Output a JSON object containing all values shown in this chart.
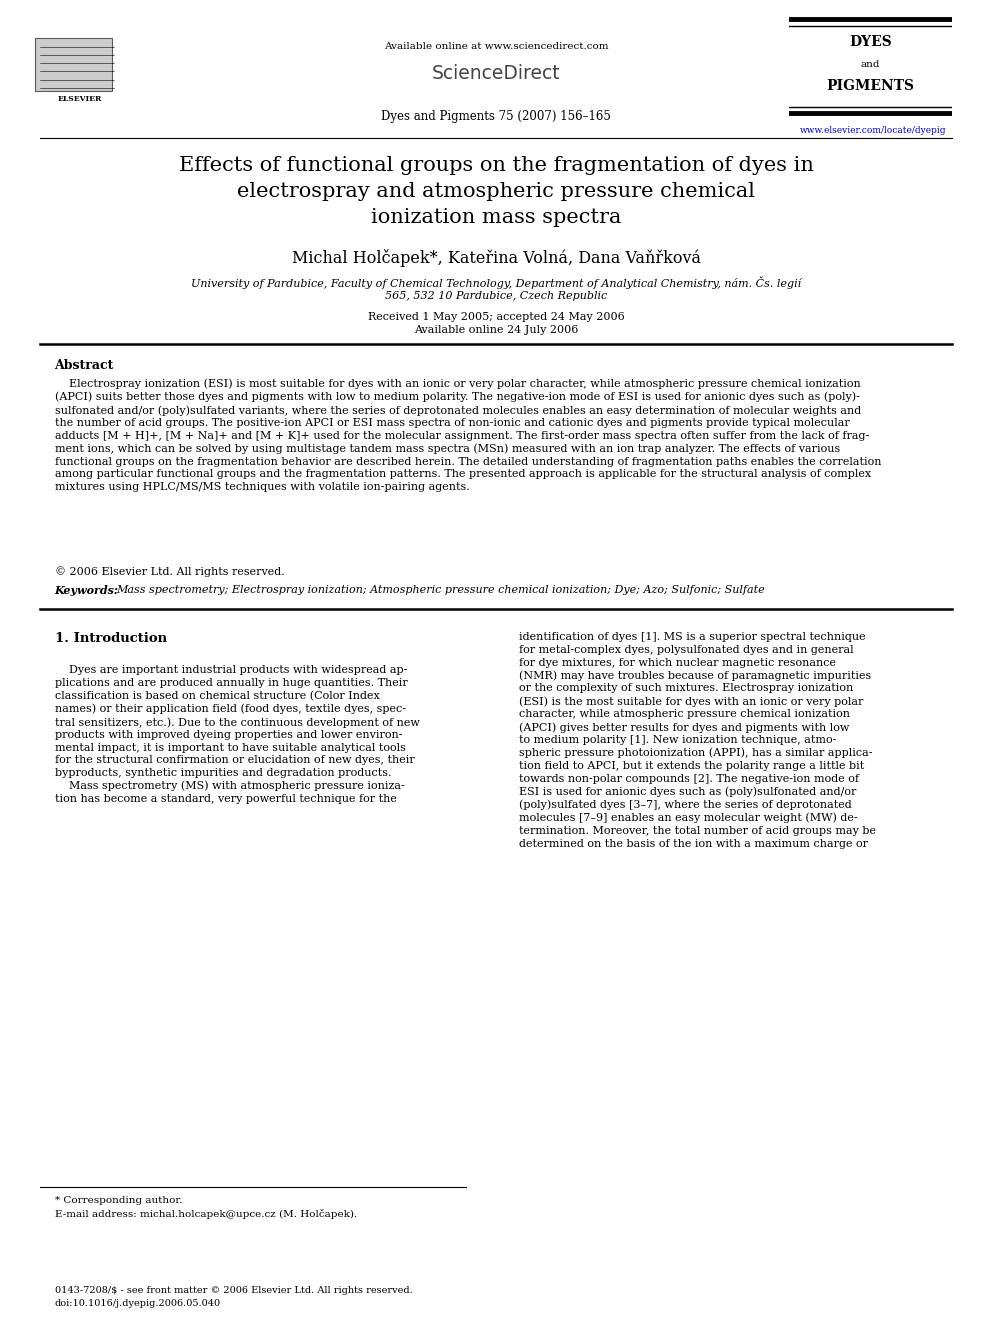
{
  "page_width": 9.92,
  "page_height": 13.23,
  "bg_color": "#ffffff",
  "header": {
    "available_online_text": "Available online at www.sciencedirect.com",
    "sciencedirect_text": "ScienceDirect",
    "journal_line": "Dyes and Pigments 75 (2007) 156–165",
    "website": "www.elsevier.com/locate/dyepig"
  },
  "title": "Effects of functional groups on the fragmentation of dyes in\nelectrospray and atmospheric pressure chemical\nionization mass spectra",
  "authors": "Michal Holčapek*, Kateřina Volná, Dana Vaňřková",
  "affiliation_line1": "University of Pardubice, Faculty of Chemical Technology, Department of Analytical Chemistry, nám. Čs. legií",
  "affiliation_line2": "565, 532 10 Pardubice, Czech Republic",
  "received_text": "Received 1 May 2005; accepted 24 May 2006",
  "available_text": "Available online 24 July 2006",
  "abstract_heading": "Abstract",
  "abstract_text": "    Electrospray ionization (ESI) is most suitable for dyes with an ionic or very polar character, while atmospheric pressure chemical ionization\n(APCI) suits better those dyes and pigments with low to medium polarity. The negative-ion mode of ESI is used for anionic dyes such as (poly)-\nsulfonated and/or (poly)sulfated variants, where the series of deprotonated molecules enables an easy determination of molecular weights and\nthe number of acid groups. The positive-ion APCI or ESI mass spectra of non-ionic and cationic dyes and pigments provide typical molecular\nadducts [M + H]+, [M + Na]+ and [M + K]+ used for the molecular assignment. The first-order mass spectra often suffer from the lack of frag-\nment ions, which can be solved by using multistage tandem mass spectra (MSn) measured with an ion trap analyzer. The effects of various\nfunctional groups on the fragmentation behavior are described herein. The detailed understanding of fragmentation paths enables the correlation\namong particular functional groups and the fragmentation patterns. The presented approach is applicable for the structural analysis of complex\nmixtures using HPLC/MS/MS techniques with volatile ion-pairing agents.",
  "copyright_text": "© 2006 Elsevier Ltd. All rights reserved.",
  "keywords_label": "Keywords: ",
  "keywords_text": "Mass spectrometry; Electrospray ionization; Atmospheric pressure chemical ionization; Dye; Azo; Sulfonic; Sulfate",
  "section1_heading": "1. Introduction",
  "left_intro_lines": [
    "    Dyes are important industrial products with widespread ap-",
    "plications and are produced annually in huge quantities. Their",
    "classification is based on chemical structure (Color Index",
    "names) or their application field (food dyes, textile dyes, spec-",
    "tral sensitizers, etc.). Due to the continuous development of new",
    "products with improved dyeing properties and lower environ-",
    "mental impact, it is important to have suitable analytical tools",
    "for the structural confirmation or elucidation of new dyes, their",
    "byproducts, synthetic impurities and degradation products.",
    "    Mass spectrometry (MS) with atmospheric pressure ioniza-",
    "tion has become a standard, very powerful technique for the"
  ],
  "right_intro_lines": [
    "identification of dyes [1]. MS is a superior spectral technique",
    "for metal-complex dyes, polysulfonated dyes and in general",
    "for dye mixtures, for which nuclear magnetic resonance",
    "(NMR) may have troubles because of paramagnetic impurities",
    "or the complexity of such mixtures. Electrospray ionization",
    "(ESI) is the most suitable for dyes with an ionic or very polar",
    "character, while atmospheric pressure chemical ionization",
    "(APCI) gives better results for dyes and pigments with low",
    "to medium polarity [1]. New ionization technique, atmo-",
    "spheric pressure photoionization (APPI), has a similar applica-",
    "tion field to APCI, but it extends the polarity range a little bit",
    "towards non-polar compounds [2]. The negative-ion mode of",
    "ESI is used for anionic dyes such as (poly)sulfonated and/or",
    "(poly)sulfated dyes [3–7], where the series of deprotonated",
    "molecules [7–9] enables an easy molecular weight (MW) de-",
    "termination. Moreover, the total number of acid groups may be",
    "determined on the basis of the ion with a maximum charge or"
  ],
  "footer_corresponding": "* Corresponding author.",
  "footer_email": "E-mail address: michal.holcapek@upce.cz (M. Holčapek).",
  "footer_issn": "0143-7208/$ - see front matter © 2006 Elsevier Ltd. All rights reserved.",
  "footer_doi": "doi:10.1016/j.dyepig.2006.05.040"
}
